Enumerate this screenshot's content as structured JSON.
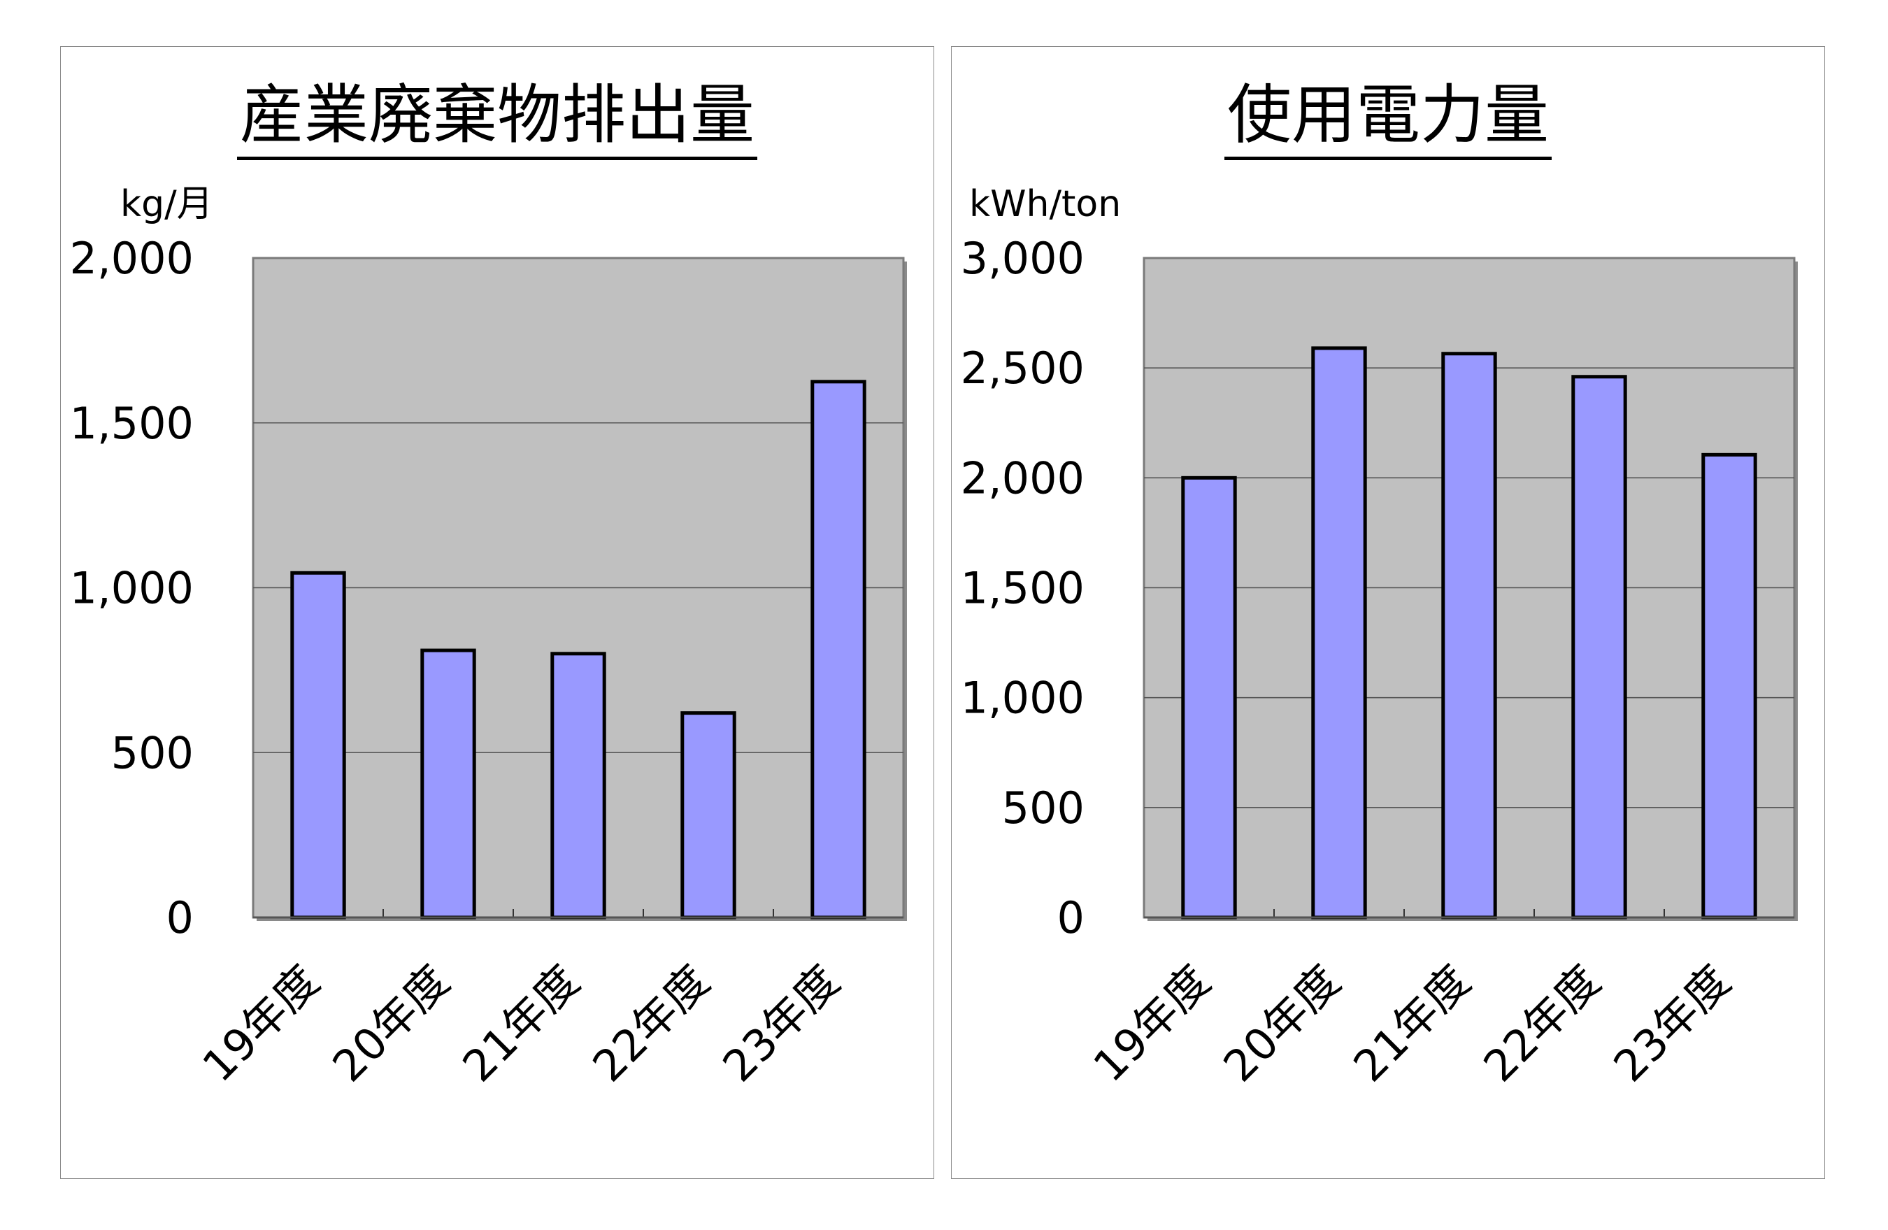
{
  "chart_data": [
    {
      "type": "bar",
      "title": "産業廃棄物排出量",
      "ylabel": "kg/月",
      "categories": [
        "19年度",
        "20年度",
        "21年度",
        "22年度",
        "23年度"
      ],
      "values": [
        1045,
        810,
        800,
        620,
        1625
      ],
      "ylim": [
        0,
        2000
      ],
      "yticks": [
        0,
        500,
        1000,
        1500,
        2000
      ],
      "ytick_labels": [
        "0",
        "500",
        "1,000",
        "1,500",
        "2,000"
      ],
      "grid": true,
      "bar_color": "#9999ff",
      "plot_background": "#c0c0c0"
    },
    {
      "type": "bar",
      "title": "使用電力量",
      "ylabel": "kWh/ton",
      "categories": [
        "19年度",
        "20年度",
        "21年度",
        "22年度",
        "23年度"
      ],
      "values": [
        2000,
        2590,
        2565,
        2460,
        2105
      ],
      "ylim": [
        0,
        3000
      ],
      "yticks": [
        0,
        500,
        1000,
        1500,
        2000,
        2500,
        3000
      ],
      "ytick_labels": [
        "0",
        "500",
        "1,000",
        "1,500",
        "2,000",
        "2,500",
        "3,000"
      ],
      "grid": true,
      "bar_color": "#9999ff",
      "plot_background": "#c0c0c0"
    }
  ]
}
